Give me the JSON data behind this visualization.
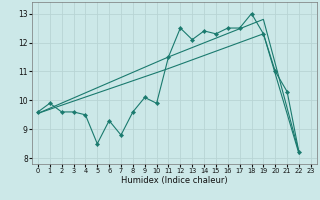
{
  "xlabel": "Humidex (Indice chaleur)",
  "xlim": [
    -0.5,
    23.5
  ],
  "ylim": [
    7.8,
    13.4
  ],
  "yticks": [
    8,
    9,
    10,
    11,
    12,
    13
  ],
  "xticks": [
    0,
    1,
    2,
    3,
    4,
    5,
    6,
    7,
    8,
    9,
    10,
    11,
    12,
    13,
    14,
    15,
    16,
    17,
    18,
    19,
    20,
    21,
    22,
    23
  ],
  "bg_color": "#cce8e8",
  "line_color": "#1a7a6e",
  "grid_color": "#b8d4d4",
  "series_jagged": {
    "x": [
      0,
      1,
      2,
      3,
      4,
      5,
      6,
      7,
      8,
      9,
      10,
      11,
      12,
      13,
      14,
      15,
      16,
      17,
      18,
      19,
      20,
      21,
      22
    ],
    "y": [
      9.6,
      9.9,
      9.6,
      9.6,
      9.5,
      8.5,
      9.3,
      8.8,
      9.6,
      10.1,
      9.9,
      11.5,
      12.5,
      12.1,
      12.4,
      12.3,
      12.5,
      12.5,
      13.0,
      12.3,
      11.0,
      10.3,
      8.2
    ]
  },
  "series_upper": {
    "x": [
      0,
      11,
      19,
      22
    ],
    "y": [
      9.55,
      11.5,
      12.8,
      8.2
    ]
  },
  "series_lower": {
    "x": [
      0,
      11,
      19,
      22
    ],
    "y": [
      9.55,
      11.1,
      12.3,
      8.15
    ]
  }
}
